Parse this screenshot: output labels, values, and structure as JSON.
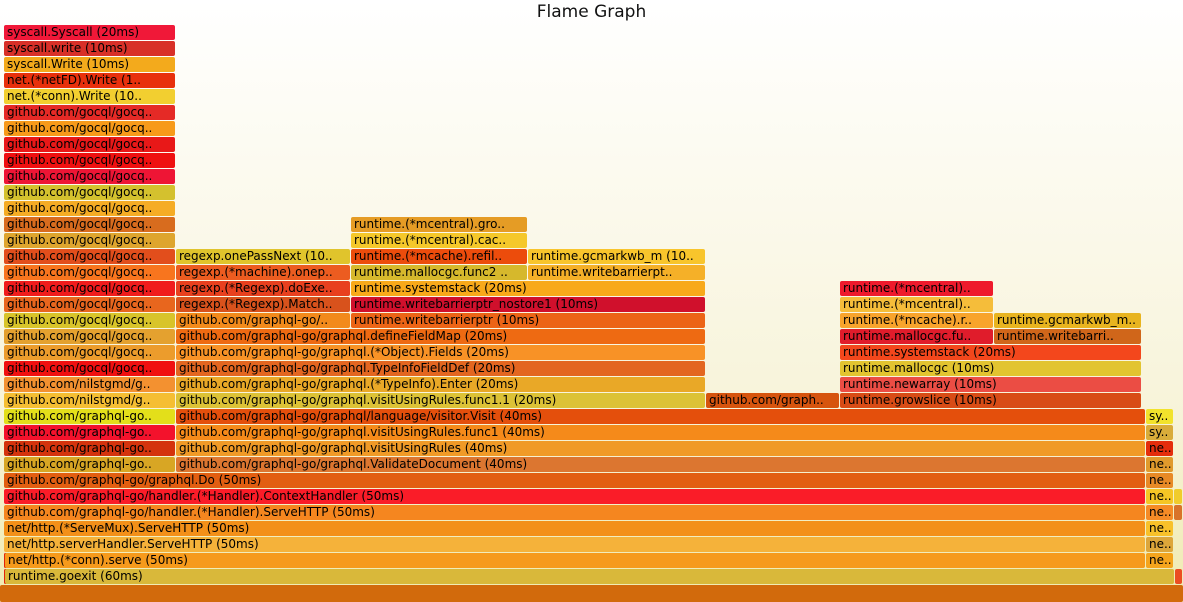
{
  "title": "Flame Graph",
  "chart_data": {
    "type": "flamegraph",
    "title": "Flame Graph",
    "unit": "ms",
    "total_ms": 60,
    "frames": [
      {
        "depth": 0,
        "start": 0,
        "end": 60,
        "label": "",
        "color": "#d26a0c"
      },
      {
        "depth": 1,
        "start": 0,
        "end": 0.05,
        "label": "",
        "color": "#e4220a"
      },
      {
        "depth": 1,
        "start": 0.05,
        "end": 59.4,
        "label": "runtime.goexit (60ms)",
        "color": "#d9b83a"
      },
      {
        "depth": 1,
        "start": 59.4,
        "end": 60,
        "label": "",
        "color": "#eb4d22"
      },
      {
        "depth": 2,
        "start": 0,
        "end": 0.05,
        "label": "",
        "color": "#e4220a"
      },
      {
        "depth": 2,
        "start": 0.05,
        "end": 57.9,
        "label": "net/http.(*conn).serve (50ms)",
        "color": "#f69a1c"
      },
      {
        "depth": 2,
        "start": 57.9,
        "end": 59.35,
        "label": "ne..",
        "color": "#f5a51d"
      },
      {
        "depth": 3,
        "start": 0,
        "end": 57.9,
        "label": "net/http.serverHandler.ServeHTTP (50ms)",
        "color": "#f5b23a"
      },
      {
        "depth": 3,
        "start": 57.9,
        "end": 59.35,
        "label": "ne..",
        "color": "#dda63a"
      },
      {
        "depth": 4,
        "start": 0,
        "end": 57.9,
        "label": "net/http.(*ServeMux).ServeHTTP (50ms)",
        "color": "#f39019"
      },
      {
        "depth": 4,
        "start": 57.9,
        "end": 59.35,
        "label": "ne..",
        "color": "#f8c12a"
      },
      {
        "depth": 5,
        "start": 0,
        "end": 57.9,
        "label": "github.com/graphql-go/handler.(*Handler).ServeHTTP (50ms)",
        "color": "#f5861f"
      },
      {
        "depth": 5,
        "start": 57.9,
        "end": 59.35,
        "label": "ne..",
        "color": "#f58b26"
      },
      {
        "depth": 5,
        "start": 59.35,
        "end": 60,
        "label": "",
        "color": "#d8732a"
      },
      {
        "depth": 6,
        "start": 0,
        "end": 57.9,
        "label": "github.com/graphql-go/handler.(*Handler).ContextHandler (50ms)",
        "color": "#fa1c28"
      },
      {
        "depth": 6,
        "start": 57.9,
        "end": 59.35,
        "label": "ne..",
        "color": "#f5c625"
      },
      {
        "depth": 6,
        "start": 59.35,
        "end": 60,
        "label": "",
        "color": "#f0cc2c"
      },
      {
        "depth": 7,
        "start": 0,
        "end": 57.9,
        "label": "github.com/graphql-go/graphql.Do (50ms)",
        "color": "#e25e11"
      },
      {
        "depth": 7,
        "start": 57.9,
        "end": 59.35,
        "label": "ne..",
        "color": "#e88a26"
      },
      {
        "depth": 8,
        "start": 0,
        "end": 8.7,
        "label": "github.com/graphql-go..",
        "color": "#d8a624"
      },
      {
        "depth": 8,
        "start": 8.7,
        "end": 57.9,
        "label": "github.com/graphql-go/graphql.ValidateDocument (40ms)",
        "color": "#dc7630"
      },
      {
        "depth": 8,
        "start": 57.9,
        "end": 59.35,
        "label": "ne..",
        "color": "#e09a2c"
      },
      {
        "depth": 9,
        "start": 0,
        "end": 8.7,
        "label": "github.com/graphql-go..",
        "color": "#d4330d"
      },
      {
        "depth": 9,
        "start": 8.7,
        "end": 57.9,
        "label": "github.com/graphql-go/graphql.visitUsingRules (40ms)",
        "color": "#f09a27"
      },
      {
        "depth": 9,
        "start": 57.9,
        "end": 59.35,
        "label": "ne..",
        "color": "#e42d0c"
      },
      {
        "depth": 10,
        "start": 0,
        "end": 8.7,
        "label": "github.com/graphql-go..",
        "color": "#f3122c"
      },
      {
        "depth": 10,
        "start": 8.7,
        "end": 57.9,
        "label": "github.com/graphql-go/graphql.visitUsingRules.func1 (40ms)",
        "color": "#f58a1a"
      },
      {
        "depth": 10,
        "start": 57.9,
        "end": 59.35,
        "label": "sy..",
        "color": "#d9ac3a"
      },
      {
        "depth": 11,
        "start": 0,
        "end": 8.7,
        "label": "github.com/graphql-go..",
        "color": "#e3df1a"
      },
      {
        "depth": 11,
        "start": 8.7,
        "end": 57.9,
        "label": "github.com/graphql-go/graphql/language/visitor.Visit (40ms)",
        "color": "#e44f0c"
      },
      {
        "depth": 11,
        "start": 57.9,
        "end": 59.35,
        "label": "sy..",
        "color": "#f2e32c"
      },
      {
        "depth": 12,
        "start": 0,
        "end": 8.7,
        "label": "github.com/nilstgmd/g..",
        "color": "#f5be33"
      },
      {
        "depth": 12,
        "start": 8.7,
        "end": 35.6,
        "label": "github.com/graphql-go/graphql.visitUsingRules.func1.1 (20ms)",
        "color": "#dcc236"
      },
      {
        "depth": 12,
        "start": 35.6,
        "end": 42.4,
        "label": "github.com/graph..",
        "color": "#d6540e"
      },
      {
        "depth": 12,
        "start": 42.4,
        "end": 57.7,
        "label": "runtime.growslice (10ms)",
        "color": "#d84c16"
      },
      {
        "depth": 13,
        "start": 0,
        "end": 8.7,
        "label": "github.com/nilstgmd/g..",
        "color": "#f39130"
      },
      {
        "depth": 13,
        "start": 8.7,
        "end": 35.6,
        "label": "github.com/graphql-go/graphql.(*TypeInfo).Enter (20ms)",
        "color": "#e9a827"
      },
      {
        "depth": 13,
        "start": 42.4,
        "end": 57.7,
        "label": "runtime.newarray (10ms)",
        "color": "#eb4d44"
      },
      {
        "depth": 14,
        "start": 0,
        "end": 8.7,
        "label": "github.com/gocql/gocq..",
        "color": "#f01010"
      },
      {
        "depth": 14,
        "start": 8.7,
        "end": 35.6,
        "label": "github.com/graphql-go/graphql.TypeInfoFieldDef (20ms)",
        "color": "#e36620"
      },
      {
        "depth": 14,
        "start": 42.4,
        "end": 57.7,
        "label": "runtime.mallocgc (10ms)",
        "color": "#e2c430"
      },
      {
        "depth": 15,
        "start": 0,
        "end": 8.7,
        "label": "github.com/gocql/gocq..",
        "color": "#ec9c2c"
      },
      {
        "depth": 15,
        "start": 8.7,
        "end": 35.6,
        "label": "github.com/graphql-go/graphql.(*Object).Fields (20ms)",
        "color": "#f89226"
      },
      {
        "depth": 15,
        "start": 42.4,
        "end": 57.7,
        "label": "runtime.systemstack (20ms)",
        "color": "#f3471c"
      },
      {
        "depth": 16,
        "start": 0,
        "end": 8.7,
        "label": "github.com/gocql/gocq..",
        "color": "#e4a12f"
      },
      {
        "depth": 16,
        "start": 8.7,
        "end": 35.6,
        "label": "github.com/graphql-go/graphql.defineFieldMap (20ms)",
        "color": "#ee6a12"
      },
      {
        "depth": 16,
        "start": 42.4,
        "end": 50.2,
        "label": "runtime.mallocgc.fu..",
        "color": "#e01c2b"
      },
      {
        "depth": 16,
        "start": 50.2,
        "end": 57.7,
        "label": "runtime.writebarri..",
        "color": "#d0661a"
      },
      {
        "depth": 17,
        "start": 0,
        "end": 8.7,
        "label": "github.com/gocql/gocq..",
        "color": "#d8c42a"
      },
      {
        "depth": 17,
        "start": 8.7,
        "end": 17.6,
        "label": "github.com/graphql-go/..",
        "color": "#f28a1b"
      },
      {
        "depth": 17,
        "start": 17.6,
        "end": 35.6,
        "label": "runtime.writebarrierptr (10ms)",
        "color": "#ec6416"
      },
      {
        "depth": 17,
        "start": 42.4,
        "end": 50.2,
        "label": "runtime.(*mcache).r..",
        "color": "#f8a42c"
      },
      {
        "depth": 17,
        "start": 50.2,
        "end": 57.7,
        "label": "runtime.gcmarkwb_m..",
        "color": "#e8b41f"
      },
      {
        "depth": 18,
        "start": 0,
        "end": 8.7,
        "label": "github.com/gocql/gocq..",
        "color": "#e8661e"
      },
      {
        "depth": 18,
        "start": 8.7,
        "end": 17.6,
        "label": "regexp.(*Regexp).Match..",
        "color": "#d8521c"
      },
      {
        "depth": 18,
        "start": 17.6,
        "end": 35.6,
        "label": "runtime.writebarrierptr_nostore1 (10ms)",
        "color": "#d0102c"
      },
      {
        "depth": 18,
        "start": 42.4,
        "end": 50.2,
        "label": "runtime.(*mcentral)..",
        "color": "#f5bd3a"
      },
      {
        "depth": 19,
        "start": 0,
        "end": 8.7,
        "label": "github.com/gocql/gocq..",
        "color": "#f01c1c"
      },
      {
        "depth": 19,
        "start": 8.7,
        "end": 17.6,
        "label": "regexp.(*Regexp).doExe..",
        "color": "#e8401e"
      },
      {
        "depth": 19,
        "start": 17.6,
        "end": 35.6,
        "label": "runtime.systemstack (20ms)",
        "color": "#f8a91a"
      },
      {
        "depth": 19,
        "start": 42.4,
        "end": 50.2,
        "label": "runtime.(*mcentral)..",
        "color": "#ee1a2c"
      },
      {
        "depth": 20,
        "start": 0,
        "end": 8.7,
        "label": "github.com/gocql/gocq..",
        "color": "#f8751e"
      },
      {
        "depth": 20,
        "start": 8.7,
        "end": 17.6,
        "label": "regexp.(*machine).onep..",
        "color": "#ec5c20"
      },
      {
        "depth": 20,
        "start": 17.6,
        "end": 26.6,
        "label": "runtime.mallocgc.func2 ..",
        "color": "#d6b82c"
      },
      {
        "depth": 20,
        "start": 26.6,
        "end": 35.6,
        "label": "runtime.writebarrierpt..",
        "color": "#f5b028"
      },
      {
        "depth": 21,
        "start": 0,
        "end": 8.7,
        "label": "github.com/gocql/gocq..",
        "color": "#e24e1c"
      },
      {
        "depth": 21,
        "start": 8.7,
        "end": 17.6,
        "label": "regexp.onePassNext (10..",
        "color": "#e0c42c"
      },
      {
        "depth": 21,
        "start": 17.6,
        "end": 26.6,
        "label": "runtime.(*mcache).refil..",
        "color": "#ec4c0c"
      },
      {
        "depth": 21,
        "start": 26.6,
        "end": 35.6,
        "label": "runtime.gcmarkwb_m (10..",
        "color": "#f8c52c"
      },
      {
        "depth": 22,
        "start": 0,
        "end": 8.7,
        "label": "github.com/gocql/gocq..",
        "color": "#dea52e"
      },
      {
        "depth": 22,
        "start": 17.6,
        "end": 26.6,
        "label": "runtime.(*mcentral).cac..",
        "color": "#f5c82a"
      },
      {
        "depth": 23,
        "start": 0,
        "end": 8.7,
        "label": "github.com/gocql/gocq..",
        "color": "#d86c1e"
      },
      {
        "depth": 23,
        "start": 17.6,
        "end": 26.6,
        "label": "runtime.(*mcentral).gro..",
        "color": "#e59c25"
      },
      {
        "depth": 24,
        "start": 0,
        "end": 8.7,
        "label": "github.com/gocql/gocq..",
        "color": "#f5ac25"
      },
      {
        "depth": 25,
        "start": 0,
        "end": 8.7,
        "label": "github.com/gocql/gocq..",
        "color": "#d4c12e"
      },
      {
        "depth": 26,
        "start": 0,
        "end": 8.7,
        "label": "github.com/gocql/gocq..",
        "color": "#ee1535"
      },
      {
        "depth": 27,
        "start": 0,
        "end": 8.7,
        "label": "github.com/gocql/gocq..",
        "color": "#ef1010"
      },
      {
        "depth": 28,
        "start": 0,
        "end": 8.7,
        "label": "github.com/gocql/gocq..",
        "color": "#e81818"
      },
      {
        "depth": 29,
        "start": 0,
        "end": 8.7,
        "label": "github.com/gocql/gocq..",
        "color": "#f79a1a"
      },
      {
        "depth": 30,
        "start": 0,
        "end": 8.7,
        "label": "github.com/gocql/gocq..",
        "color": "#e52a26"
      },
      {
        "depth": 31,
        "start": 0,
        "end": 8.7,
        "label": "net.(*conn).Write (10..",
        "color": "#f2cf30"
      },
      {
        "depth": 32,
        "start": 0,
        "end": 8.7,
        "label": "net.(*netFD).Write (1..",
        "color": "#e8300c"
      },
      {
        "depth": 33,
        "start": 0,
        "end": 8.7,
        "label": "syscall.Write (10ms)",
        "color": "#f3aa1c"
      },
      {
        "depth": 34,
        "start": 0,
        "end": 8.7,
        "label": "syscall.write (10ms)",
        "color": "#d83028"
      },
      {
        "depth": 35,
        "start": 0,
        "end": 8.7,
        "label": "syscall.Syscall (20ms)",
        "color": "#f01838"
      }
    ]
  }
}
